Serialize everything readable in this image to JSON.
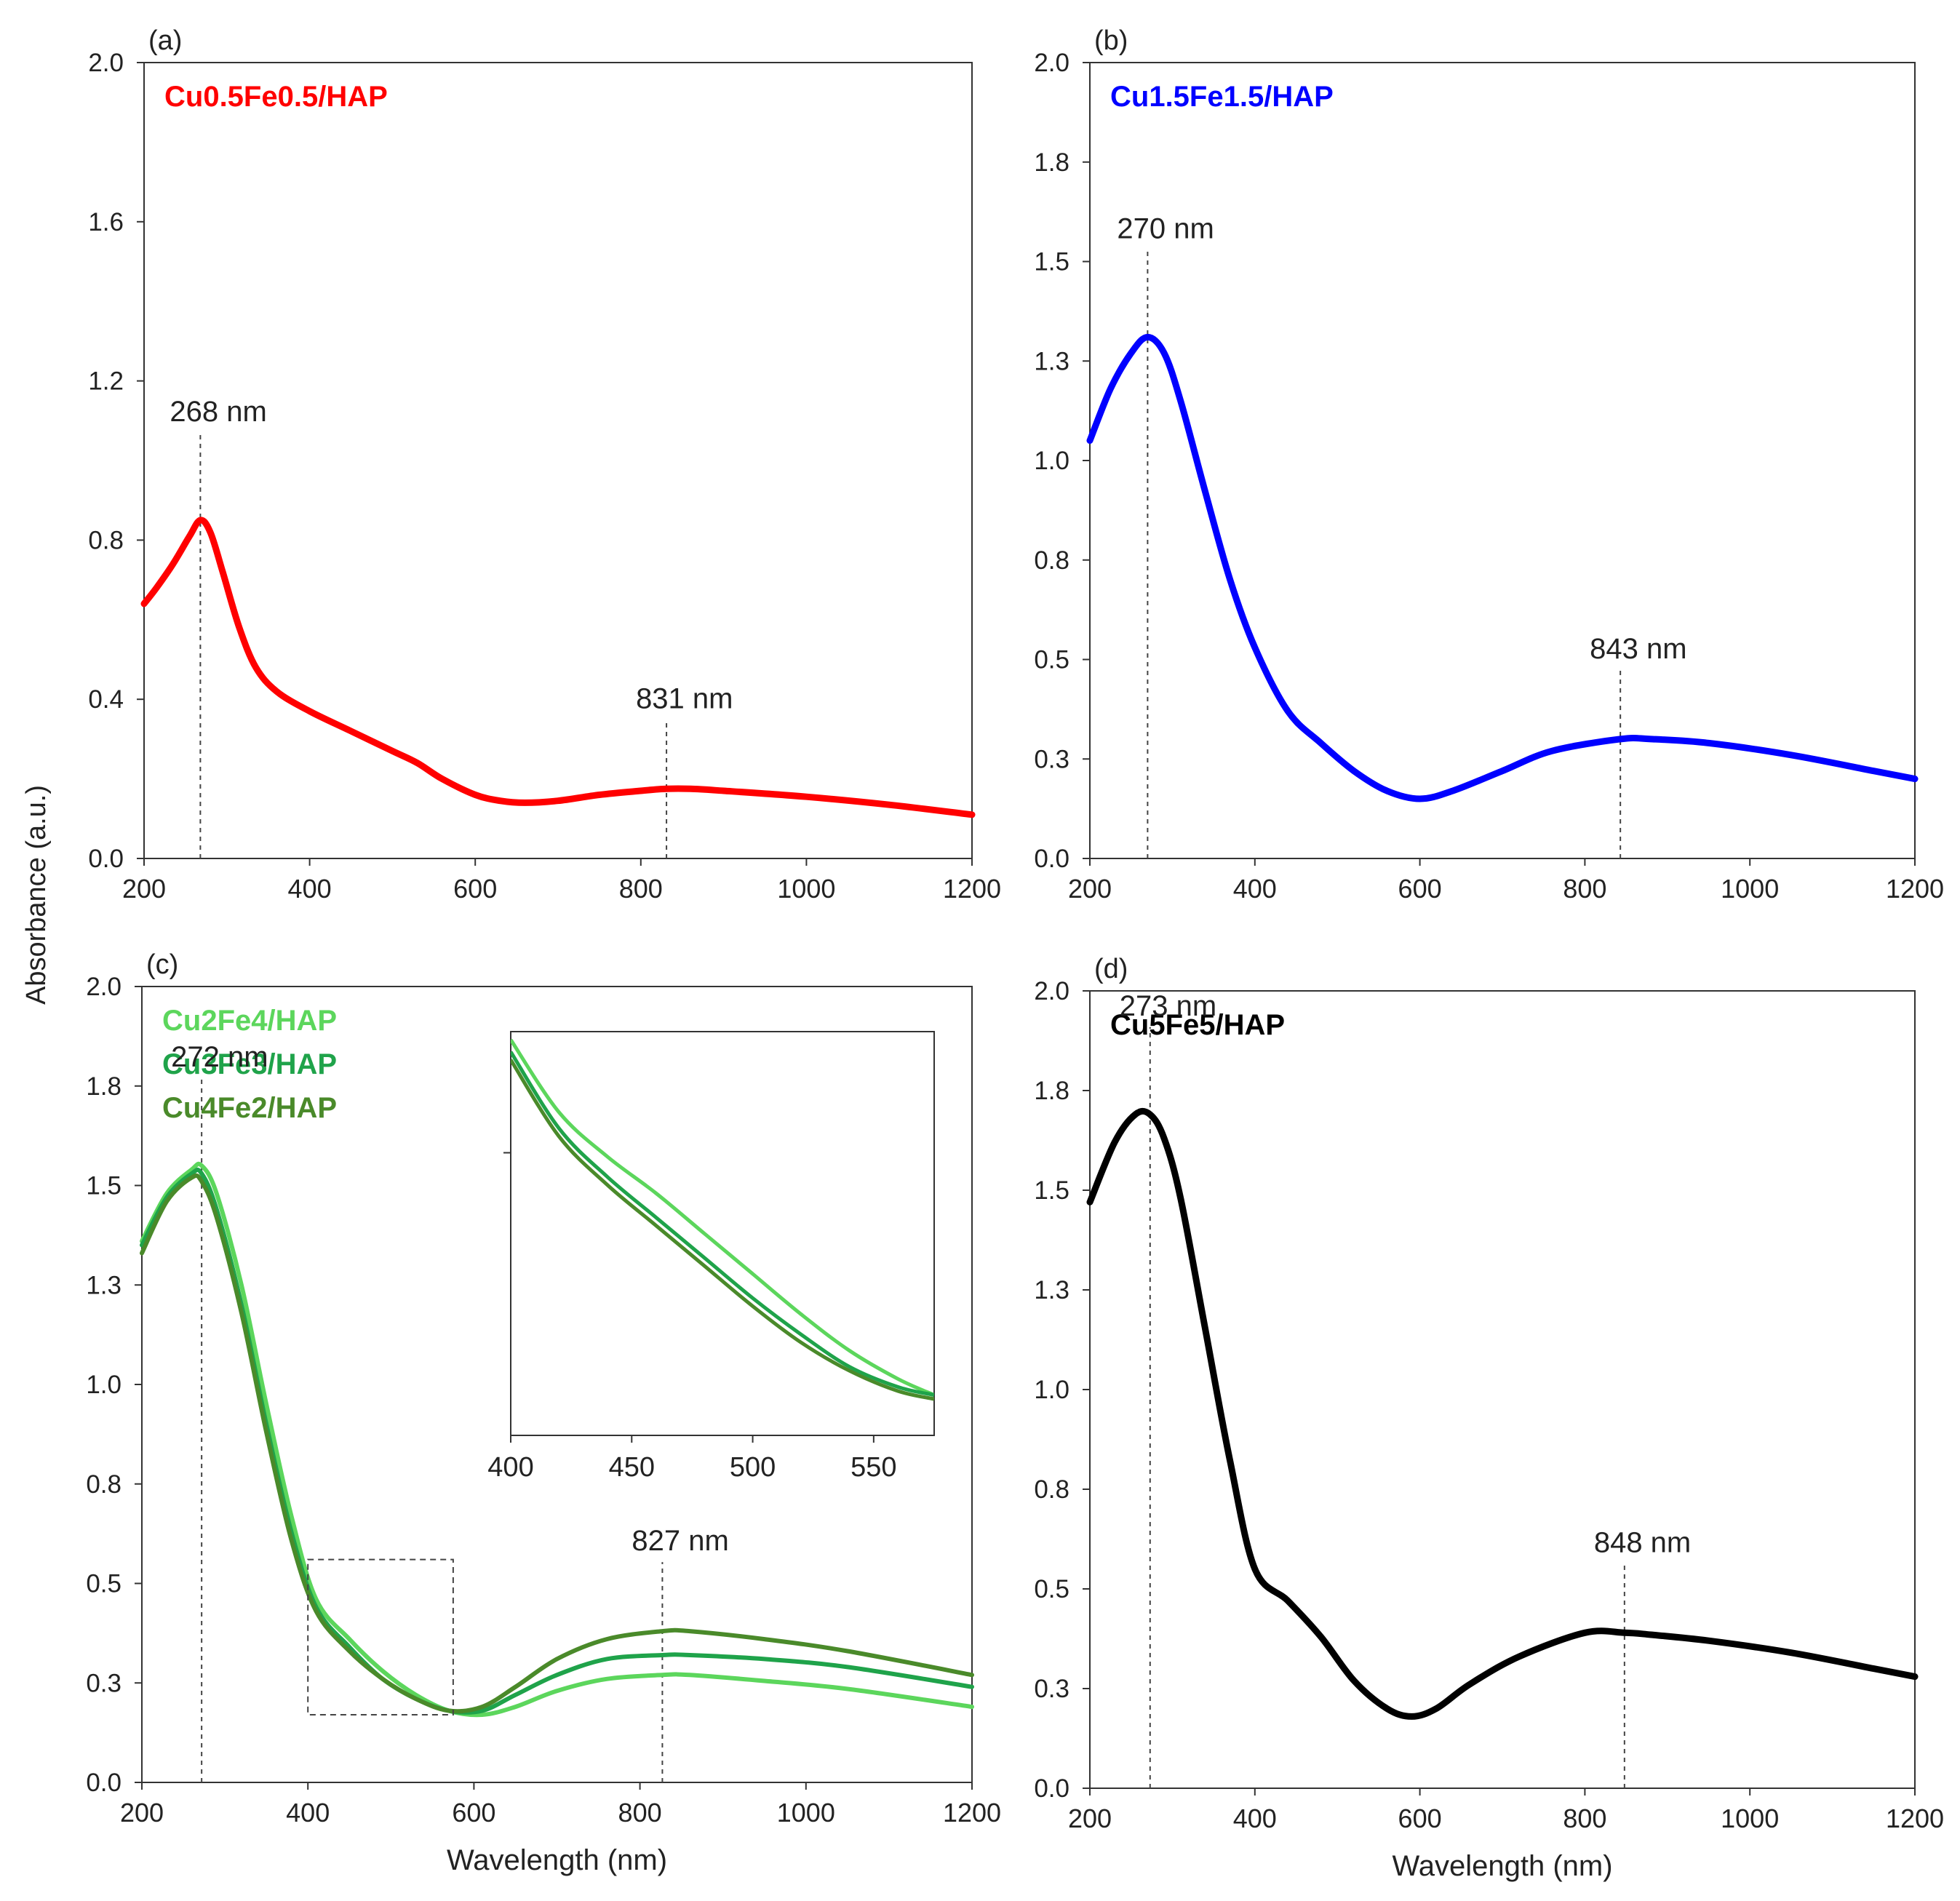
{
  "figure": {
    "ylabel": "Absorbance (a.u.)",
    "xlabel": "Wavelength (nm)"
  },
  "chart_data": [
    {
      "panel": "(a)",
      "type": "line",
      "xlim": [
        200,
        1200
      ],
      "ylim": [
        0,
        2.0
      ],
      "xticks": [
        "200",
        "400",
        "600",
        "800",
        "1000",
        "1200"
      ],
      "yticks": [
        "0.0",
        "0.4",
        "0.8",
        "1.2",
        "1.6",
        "2.0"
      ],
      "xlabel": "",
      "series": [
        {
          "name": "Cu0.5Fe0.5/HAP",
          "color": "#ff0000",
          "x": [
            200,
            215,
            235,
            255,
            268,
            280,
            295,
            315,
            335,
            360,
            400,
            450,
            500,
            530,
            560,
            600,
            630,
            660,
            700,
            750,
            800,
            831,
            860,
            900,
            1000,
            1100,
            1200
          ],
          "y": [
            0.64,
            0.68,
            0.74,
            0.81,
            0.85,
            0.82,
            0.72,
            0.58,
            0.48,
            0.42,
            0.37,
            0.32,
            0.27,
            0.24,
            0.2,
            0.16,
            0.145,
            0.14,
            0.145,
            0.16,
            0.17,
            0.175,
            0.175,
            0.17,
            0.155,
            0.135,
            0.11
          ]
        }
      ],
      "annotations": [
        {
          "text": "268 nm",
          "x": 268
        },
        {
          "text": "831 nm",
          "x": 831
        }
      ]
    },
    {
      "panel": "(b)",
      "type": "line",
      "xlim": [
        200,
        1200
      ],
      "ylim": [
        0,
        2.0
      ],
      "xticks": [
        "200",
        "400",
        "600",
        "800",
        "1000",
        "1200"
      ],
      "ytick_values": [
        0,
        0.25,
        0.5,
        0.75,
        1.0,
        1.25,
        1.5,
        1.75,
        2.0
      ],
      "yticks": [
        "0.0",
        "0.3",
        "0.5",
        "0.8",
        "1.0",
        "1.3",
        "1.5",
        "1.8",
        "2.0"
      ],
      "xlabel": "",
      "series": [
        {
          "name": "Cu1.5Fe1.5/HAP",
          "color": "#0000ff",
          "x": [
            200,
            225,
            250,
            270,
            290,
            310,
            340,
            370,
            400,
            440,
            480,
            520,
            560,
            600,
            640,
            700,
            760,
            843,
            880,
            950,
            1050,
            1150,
            1200
          ],
          "y": [
            1.05,
            1.18,
            1.27,
            1.31,
            1.27,
            1.15,
            0.92,
            0.7,
            0.53,
            0.37,
            0.29,
            0.22,
            0.17,
            0.15,
            0.17,
            0.22,
            0.27,
            0.3,
            0.3,
            0.29,
            0.26,
            0.22,
            0.2
          ]
        }
      ],
      "annotations": [
        {
          "text": "270 nm",
          "x": 270
        },
        {
          "text": "843 nm",
          "x": 843
        }
      ]
    },
    {
      "panel": "(c)",
      "type": "line",
      "xlim": [
        200,
        1200
      ],
      "ylim": [
        0,
        2.0
      ],
      "xticks": [
        "200",
        "400",
        "600",
        "800",
        "1000",
        "1200"
      ],
      "ytick_values": [
        0,
        0.25,
        0.5,
        0.75,
        1.0,
        1.25,
        1.5,
        1.75,
        2.0
      ],
      "yticks": [
        "0.0",
        "0.3",
        "0.5",
        "0.8",
        "1.0",
        "1.3",
        "1.5",
        "1.8",
        "2.0"
      ],
      "xlabel": "Wavelength (nm)",
      "series": [
        {
          "name": "Cu2Fe4/HAP",
          "color": "#5cd65c",
          "x": [
            200,
            230,
            260,
            272,
            290,
            320,
            350,
            380,
            410,
            450,
            490,
            530,
            570,
            610,
            650,
            700,
            760,
            827,
            860,
            950,
            1050,
            1200
          ],
          "y": [
            1.36,
            1.48,
            1.54,
            1.55,
            1.48,
            1.25,
            0.95,
            0.67,
            0.46,
            0.36,
            0.28,
            0.22,
            0.18,
            0.17,
            0.19,
            0.23,
            0.26,
            0.27,
            0.27,
            0.255,
            0.235,
            0.19
          ]
        },
        {
          "name": "Cu3Fe3/HAP",
          "color": "#1fa34a",
          "x": [
            200,
            230,
            260,
            272,
            290,
            320,
            350,
            380,
            410,
            450,
            490,
            530,
            570,
            610,
            650,
            700,
            760,
            827,
            860,
            950,
            1050,
            1200
          ],
          "y": [
            1.35,
            1.47,
            1.53,
            1.53,
            1.44,
            1.2,
            0.9,
            0.63,
            0.44,
            0.34,
            0.26,
            0.21,
            0.18,
            0.18,
            0.22,
            0.27,
            0.31,
            0.32,
            0.32,
            0.31,
            0.29,
            0.24
          ]
        },
        {
          "name": "Cu4Fe2/HAP",
          "color": "#4a8a2a",
          "x": [
            200,
            230,
            260,
            272,
            290,
            320,
            350,
            380,
            410,
            450,
            490,
            530,
            570,
            610,
            650,
            700,
            760,
            827,
            860,
            950,
            1050,
            1200
          ],
          "y": [
            1.33,
            1.46,
            1.52,
            1.51,
            1.42,
            1.18,
            0.88,
            0.61,
            0.43,
            0.33,
            0.26,
            0.21,
            0.18,
            0.19,
            0.24,
            0.31,
            0.36,
            0.38,
            0.38,
            0.36,
            0.33,
            0.27
          ]
        }
      ],
      "inset": {
        "xlim": [
          400,
          575
        ],
        "xticks": [
          "400",
          "450",
          "500",
          "550"
        ],
        "series": [
          {
            "name": "Cu2Fe4/HAP",
            "x": [
              400,
              420,
              440,
              460,
              480,
              500,
              520,
              540,
              560,
              575
            ],
            "y": [
              0.98,
              0.8,
              0.69,
              0.6,
              0.5,
              0.4,
              0.3,
              0.21,
              0.14,
              0.1
            ]
          },
          {
            "name": "Cu3Fe3/HAP",
            "x": [
              400,
              420,
              440,
              460,
              480,
              500,
              520,
              540,
              560,
              575
            ],
            "y": [
              0.95,
              0.76,
              0.64,
              0.54,
              0.44,
              0.34,
              0.25,
              0.17,
              0.12,
              0.1
            ]
          },
          {
            "name": "Cu4Fe2/HAP",
            "x": [
              400,
              420,
              440,
              460,
              480,
              500,
              520,
              540,
              560,
              575
            ],
            "y": [
              0.93,
              0.74,
              0.62,
              0.52,
              0.42,
              0.32,
              0.23,
              0.16,
              0.11,
              0.09
            ]
          }
        ]
      },
      "annotations": [
        {
          "text": "272 nm",
          "x": 272
        },
        {
          "text": "827 nm",
          "x": 827
        }
      ]
    },
    {
      "panel": "(d)",
      "type": "line",
      "xlim": [
        200,
        1200
      ],
      "ylim": [
        0,
        2.0
      ],
      "xticks": [
        "200",
        "400",
        "600",
        "800",
        "1000",
        "1200"
      ],
      "ytick_values": [
        0,
        0.25,
        0.5,
        0.75,
        1.0,
        1.25,
        1.5,
        1.75,
        2.0
      ],
      "yticks": [
        "0.0",
        "0.3",
        "0.5",
        "0.8",
        "1.0",
        "1.3",
        "1.5",
        "1.8",
        "2.0"
      ],
      "xlabel": "Wavelength (nm)",
      "series": [
        {
          "name": "Cu5Fe5/HAP",
          "color": "#000000",
          "x": [
            200,
            230,
            255,
            273,
            290,
            310,
            340,
            370,
            400,
            440,
            480,
            520,
            560,
            590,
            620,
            660,
            720,
            800,
            848,
            880,
            950,
            1050,
            1150,
            1200
          ],
          "y": [
            1.47,
            1.62,
            1.69,
            1.69,
            1.63,
            1.48,
            1.15,
            0.82,
            0.55,
            0.47,
            0.38,
            0.27,
            0.2,
            0.18,
            0.2,
            0.26,
            0.33,
            0.39,
            0.39,
            0.385,
            0.37,
            0.34,
            0.3,
            0.28
          ]
        }
      ],
      "annotations": [
        {
          "text": "273 nm",
          "x": 273
        },
        {
          "text": "848 nm",
          "x": 848
        }
      ]
    }
  ]
}
